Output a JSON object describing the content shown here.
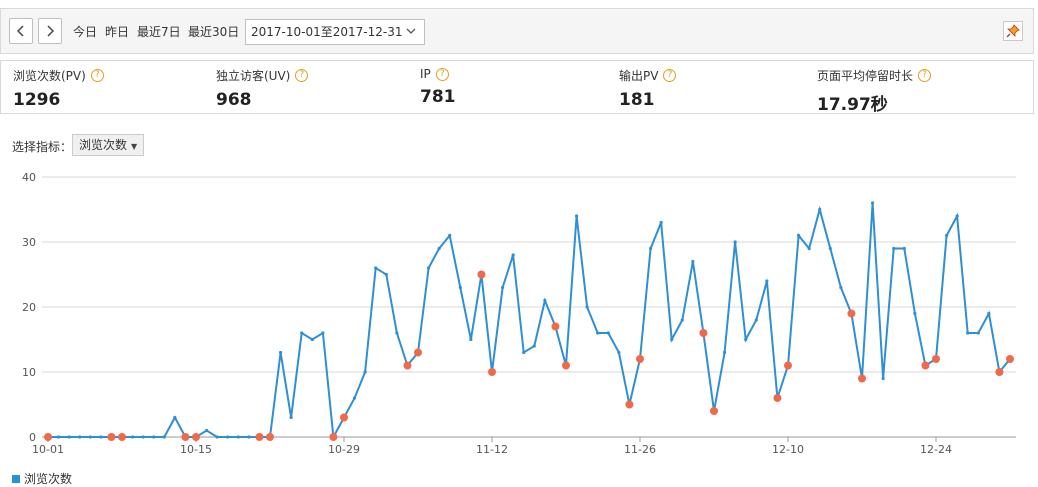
{
  "toolbar": {
    "prev_icon": "chevron-left-icon",
    "next_icon": "chevron-right-icon",
    "today": "今日",
    "yesterday": "昨日",
    "last7": "最近7日",
    "last30": "最近30日",
    "date_range": "2017-10-01至2017-12-31",
    "pin_icon": "pin-icon"
  },
  "stats": [
    {
      "label": "浏览次数(PV)",
      "value": "1296"
    },
    {
      "label": "独立访客(UV)",
      "value": "968"
    },
    {
      "label": "IP",
      "value": "781"
    },
    {
      "label": "输出PV",
      "value": "181"
    },
    {
      "label": "页面平均停留时长",
      "value": "17.97秒"
    }
  ],
  "selector": {
    "label": "选择指标：",
    "value": "浏览次数"
  },
  "colors": {
    "line": "#2e8fd4",
    "weekend_point": "#f06a4a",
    "grid": "#d8d8d8"
  },
  "chart_data": {
    "type": "line",
    "ylim": [
      0,
      40
    ],
    "yticks": [
      "0",
      "10",
      "20",
      "30",
      "40"
    ],
    "xticks": [
      "10-01",
      "10-15",
      "10-29",
      "11-12",
      "11-26",
      "12-10",
      "12-24"
    ],
    "xtick_indices": [
      0,
      14,
      28,
      42,
      56,
      70,
      84
    ],
    "legend": "浏览次数",
    "highlight_days": [
      0,
      6,
      7,
      13,
      14,
      20,
      21,
      27,
      28,
      34,
      35,
      41,
      42,
      48,
      49,
      55,
      56,
      62,
      63,
      69,
      70,
      76,
      77,
      83,
      84,
      90,
      91
    ],
    "series": [
      {
        "name": "浏览次数",
        "values": [
          0,
          0,
          0,
          0,
          0,
          0,
          0,
          0,
          0,
          0,
          0,
          0,
          3,
          0,
          0,
          1,
          0,
          0,
          0,
          0,
          0,
          0,
          13,
          3,
          16,
          15,
          16,
          0,
          3,
          6,
          10,
          26,
          25,
          16,
          11,
          13,
          26,
          29,
          31,
          23,
          15,
          25,
          10,
          23,
          28,
          13,
          14,
          21,
          17,
          11,
          34,
          20,
          16,
          16,
          13,
          5,
          12,
          29,
          33,
          15,
          18,
          27,
          16,
          4,
          13,
          30,
          15,
          18,
          24,
          6,
          11,
          31,
          29,
          35,
          29,
          23,
          19,
          9,
          36,
          9,
          29,
          29,
          19,
          11,
          12,
          31,
          34,
          16,
          16,
          19,
          10,
          12
        ]
      }
    ]
  }
}
